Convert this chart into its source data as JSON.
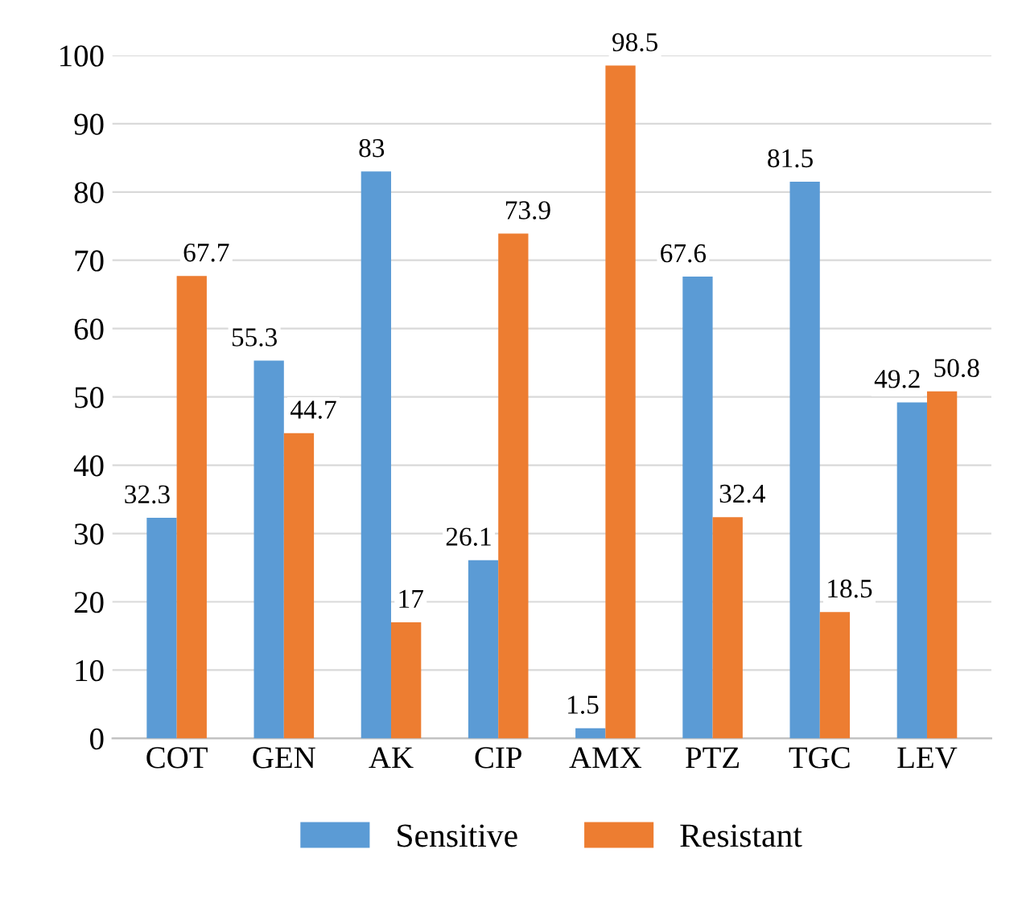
{
  "chart_data": {
    "type": "bar",
    "categories": [
      "COT",
      "GEN",
      "AK",
      "CIP",
      "AMX",
      "PTZ",
      "TGC",
      "LEV"
    ],
    "series": [
      {
        "name": "Sensitive",
        "color": "#5b9bd5",
        "values": [
          32.3,
          55.3,
          83,
          26.1,
          1.5,
          67.6,
          81.5,
          49.2
        ]
      },
      {
        "name": "Resistant",
        "color": "#ed7d31",
        "values": [
          67.7,
          44.7,
          17,
          73.9,
          98.5,
          32.4,
          18.5,
          50.8
        ]
      }
    ],
    "ylim": [
      0,
      100
    ],
    "yticks": [
      0,
      10,
      20,
      30,
      40,
      50,
      60,
      70,
      80,
      90,
      100
    ],
    "grid": "y",
    "legend": "bottom",
    "data_labels": true
  }
}
